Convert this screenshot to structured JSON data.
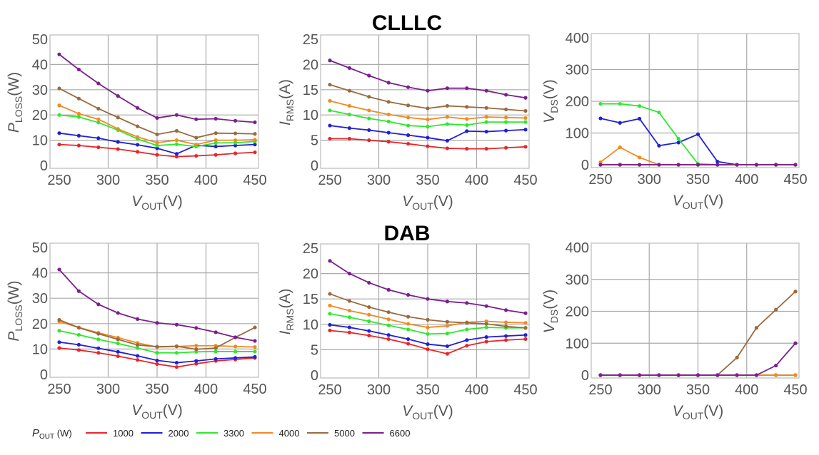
{
  "titles": {
    "top": "CLLLC",
    "bottom": "DAB"
  },
  "legend": {
    "label_main": "P",
    "label_sub": "OUT",
    "label_unit": " (W)",
    "entries": [
      "1000",
      "2000",
      "3300",
      "4000",
      "5000",
      "6600"
    ]
  },
  "colors": {
    "1000": "#e8262a",
    "2000": "#2020d8",
    "3300": "#2ee82e",
    "4000": "#f08a24",
    "5000": "#9a6a3e",
    "6600": "#7b1f8e"
  },
  "chart_data": [
    {
      "type": "line",
      "group": "CLLLC",
      "xlabel": {
        "main": "V",
        "sub": "OUT",
        "unit": "(V)"
      },
      "ylabel": {
        "main": "P",
        "sub": "LOSS",
        "unit": "(W)"
      },
      "xlim": [
        250,
        450
      ],
      "xticks": [
        "250",
        "300",
        "350",
        "400",
        "450"
      ],
      "ylim": [
        0,
        50
      ],
      "yticks": [
        "0",
        "10",
        "20",
        "30",
        "40",
        "50"
      ],
      "grid": true,
      "x": [
        250,
        270,
        290,
        310,
        330,
        350,
        370,
        390,
        410,
        430,
        450
      ],
      "series": [
        {
          "name": "1000",
          "values": [
            8.3,
            7.9,
            7.2,
            6.5,
            5.4,
            4.2,
            3.5,
            3.8,
            4.2,
            4.8,
            5.2
          ]
        },
        {
          "name": "2000",
          "values": [
            12.8,
            11.8,
            10.8,
            9.3,
            8.2,
            6.8,
            4.6,
            8.0,
            7.5,
            7.9,
            8.3
          ]
        },
        {
          "name": "3300",
          "values": [
            20.0,
            19.2,
            17.0,
            14.0,
            10.5,
            7.9,
            8.4,
            7.5,
            8.9,
            9.0,
            9.5
          ]
        },
        {
          "name": "4000",
          "values": [
            23.8,
            20.5,
            18.3,
            14.5,
            11.3,
            9.0,
            10.0,
            8.3,
            10.0,
            10.0,
            10.2
          ]
        },
        {
          "name": "5000",
          "values": [
            30.5,
            26.5,
            22.5,
            19.0,
            15.5,
            12.3,
            13.7,
            11.0,
            12.8,
            12.7,
            12.5
          ]
        },
        {
          "name": "6600",
          "values": [
            44.0,
            38.0,
            32.5,
            27.5,
            22.8,
            18.8,
            20.0,
            18.3,
            18.5,
            17.7,
            17.1
          ]
        }
      ]
    },
    {
      "type": "line",
      "group": "CLLLC",
      "xlabel": {
        "main": "V",
        "sub": "OUT",
        "unit": "(V)"
      },
      "ylabel": {
        "main": "I",
        "sub": "RMS",
        "unit": "(A)"
      },
      "xlim": [
        250,
        450
      ],
      "xticks": [
        "250",
        "300",
        "350",
        "400",
        "450"
      ],
      "ylim": [
        0,
        25
      ],
      "yticks": [
        "0",
        "5",
        "10",
        "15",
        "20",
        "25"
      ],
      "grid": true,
      "x": [
        250,
        270,
        290,
        310,
        330,
        350,
        370,
        390,
        410,
        430,
        450
      ],
      "series": [
        {
          "name": "1000",
          "values": [
            5.3,
            5.3,
            5.0,
            4.7,
            4.3,
            3.8,
            3.4,
            3.3,
            3.3,
            3.5,
            3.7
          ]
        },
        {
          "name": "2000",
          "values": [
            7.9,
            7.4,
            7.0,
            6.5,
            6.0,
            5.5,
            4.9,
            6.8,
            6.7,
            6.9,
            7.1
          ]
        },
        {
          "name": "3300",
          "values": [
            10.9,
            10.1,
            9.3,
            8.7,
            7.9,
            7.7,
            8.2,
            8.0,
            8.6,
            8.6,
            8.6
          ]
        },
        {
          "name": "4000",
          "values": [
            12.8,
            11.8,
            10.9,
            10.1,
            9.5,
            9.1,
            9.6,
            9.2,
            9.6,
            9.5,
            9.4
          ]
        },
        {
          "name": "5000",
          "values": [
            16.0,
            14.8,
            13.6,
            12.6,
            11.9,
            11.3,
            11.8,
            11.6,
            11.4,
            11.1,
            10.8
          ]
        },
        {
          "name": "6600",
          "values": [
            20.8,
            19.3,
            17.8,
            16.4,
            15.5,
            14.8,
            15.3,
            15.3,
            14.8,
            14.0,
            13.4
          ]
        }
      ]
    },
    {
      "type": "line",
      "group": "CLLLC",
      "xlabel": {
        "main": "V",
        "sub": "OUT",
        "unit": "(V)"
      },
      "ylabel": {
        "main": "V",
        "sub": "DS",
        "unit": "(V)"
      },
      "xlim": [
        250,
        450
      ],
      "xticks": [
        "250",
        "300",
        "350",
        "400",
        "450"
      ],
      "ylim": [
        0,
        400
      ],
      "yticks": [
        "0",
        "100",
        "200",
        "300",
        "400"
      ],
      "grid": true,
      "x": [
        250,
        270,
        290,
        310,
        330,
        350,
        370,
        390,
        410,
        430,
        450
      ],
      "series": [
        {
          "name": "1000",
          "values": [
            0,
            0,
            0,
            0,
            0,
            0,
            0,
            0,
            0,
            0,
            0
          ]
        },
        {
          "name": "2000",
          "values": [
            146,
            132,
            145,
            60,
            70,
            96,
            10,
            0,
            0,
            0,
            0
          ]
        },
        {
          "name": "3300",
          "values": [
            192,
            192,
            185,
            165,
            82,
            3,
            0,
            0,
            0,
            0,
            0
          ]
        },
        {
          "name": "4000",
          "values": [
            8,
            55,
            23,
            0,
            0,
            0,
            0,
            0,
            0,
            0,
            0
          ]
        },
        {
          "name": "5000",
          "values": [
            0,
            0,
            0,
            0,
            0,
            0,
            0,
            0,
            0,
            0,
            0
          ]
        },
        {
          "name": "6600",
          "values": [
            0,
            0,
            0,
            0,
            0,
            0,
            0,
            0,
            0,
            0,
            0
          ]
        }
      ]
    },
    {
      "type": "line",
      "group": "DAB",
      "xlabel": {
        "main": "V",
        "sub": "OUT",
        "unit": "(V)"
      },
      "ylabel": {
        "main": "P",
        "sub": "LOSS",
        "unit": "(W)"
      },
      "xlim": [
        250,
        450
      ],
      "xticks": [
        "250",
        "300",
        "350",
        "400",
        "450"
      ],
      "ylim": [
        0,
        50
      ],
      "yticks": [
        "0",
        "10",
        "20",
        "30",
        "40",
        "50"
      ],
      "grid": true,
      "x": [
        250,
        270,
        290,
        310,
        330,
        350,
        370,
        390,
        410,
        430,
        450
      ],
      "series": [
        {
          "name": "1000",
          "values": [
            10.4,
            9.6,
            8.5,
            7.2,
            5.7,
            4.1,
            2.9,
            4.2,
            5.3,
            5.9,
            6.5
          ]
        },
        {
          "name": "2000",
          "values": [
            12.7,
            11.7,
            10.3,
            8.9,
            7.3,
            5.5,
            4.6,
            5.3,
            6.1,
            6.5,
            6.9
          ]
        },
        {
          "name": "3300",
          "values": [
            17.2,
            15.6,
            13.8,
            12.2,
            10.4,
            8.5,
            8.5,
            8.9,
            9.0,
            9.0,
            9.0
          ]
        },
        {
          "name": "4000",
          "values": [
            20.8,
            18.5,
            16.4,
            14.5,
            12.4,
            10.8,
            11.0,
            11.3,
            11.3,
            11.0,
            10.8
          ]
        },
        {
          "name": "5000",
          "values": [
            21.5,
            18.4,
            16.0,
            13.8,
            11.6,
            10.9,
            11.1,
            9.9,
            10.4,
            14.6,
            18.5
          ]
        },
        {
          "name": "6600",
          "values": [
            41.3,
            32.8,
            27.6,
            24.2,
            21.8,
            20.3,
            19.6,
            18.3,
            16.6,
            14.6,
            13.2
          ]
        }
      ]
    },
    {
      "type": "line",
      "group": "DAB",
      "xlabel": {
        "main": "V",
        "sub": "OUT",
        "unit": "(V)"
      },
      "ylabel": {
        "main": "I",
        "sub": "RMS",
        "unit": "(A)"
      },
      "xlim": [
        250,
        450
      ],
      "xticks": [
        "250",
        "300",
        "350",
        "400",
        "450"
      ],
      "ylim": [
        0,
        25
      ],
      "yticks": [
        "0",
        "5",
        "10",
        "15",
        "20",
        "25"
      ],
      "grid": true,
      "x": [
        250,
        270,
        290,
        310,
        330,
        350,
        370,
        390,
        410,
        430,
        450
      ],
      "series": [
        {
          "name": "1000",
          "values": [
            8.8,
            8.4,
            7.8,
            7.1,
            6.2,
            5.1,
            4.2,
            5.8,
            6.6,
            6.9,
            7.1
          ]
        },
        {
          "name": "2000",
          "values": [
            9.9,
            9.4,
            8.7,
            7.9,
            7.1,
            6.1,
            5.7,
            6.9,
            7.5,
            7.7,
            7.9
          ]
        },
        {
          "name": "3300",
          "values": [
            12.1,
            11.4,
            10.6,
            9.8,
            9.0,
            8.1,
            8.2,
            9.0,
            9.4,
            9.3,
            9.3
          ]
        },
        {
          "name": "4000",
          "values": [
            13.7,
            12.7,
            11.9,
            11.0,
            10.1,
            9.4,
            9.7,
            10.4,
            10.6,
            10.4,
            10.3
          ]
        },
        {
          "name": "5000",
          "values": [
            16.0,
            14.6,
            13.4,
            12.4,
            11.5,
            10.9,
            10.5,
            10.3,
            10.1,
            9.6,
            9.3
          ]
        },
        {
          "name": "6600",
          "values": [
            22.5,
            20.0,
            18.2,
            16.8,
            15.8,
            15.0,
            14.5,
            14.2,
            13.6,
            12.8,
            12.2
          ]
        }
      ]
    },
    {
      "type": "line",
      "group": "DAB",
      "xlabel": {
        "main": "V",
        "sub": "OUT",
        "unit": "(V)"
      },
      "ylabel": {
        "main": "V",
        "sub": "DS",
        "unit": "(V)"
      },
      "xlim": [
        250,
        450
      ],
      "xticks": [
        "250",
        "300",
        "350",
        "400",
        "450"
      ],
      "ylim": [
        0,
        400
      ],
      "yticks": [
        "0",
        "100",
        "200",
        "300",
        "400"
      ],
      "grid": true,
      "x": [
        250,
        270,
        290,
        310,
        330,
        350,
        370,
        390,
        410,
        430,
        450
      ],
      "series": [
        {
          "name": "1000",
          "values": [
            0,
            0,
            0,
            0,
            0,
            0,
            0,
            0,
            0,
            0,
            0
          ]
        },
        {
          "name": "2000",
          "values": [
            0,
            0,
            0,
            0,
            0,
            0,
            0,
            0,
            0,
            0,
            0
          ]
        },
        {
          "name": "3300",
          "values": [
            0,
            0,
            0,
            0,
            0,
            0,
            0,
            0,
            0,
            0,
            0
          ]
        },
        {
          "name": "4000",
          "values": [
            0,
            0,
            0,
            0,
            0,
            0,
            0,
            0,
            0,
            0,
            0
          ]
        },
        {
          "name": "5000",
          "values": [
            0,
            0,
            0,
            0,
            0,
            0,
            0,
            55,
            148,
            205,
            262
          ]
        },
        {
          "name": "6600",
          "values": [
            0,
            0,
            0,
            0,
            0,
            0,
            0,
            0,
            0,
            30,
            100
          ]
        }
      ]
    }
  ]
}
